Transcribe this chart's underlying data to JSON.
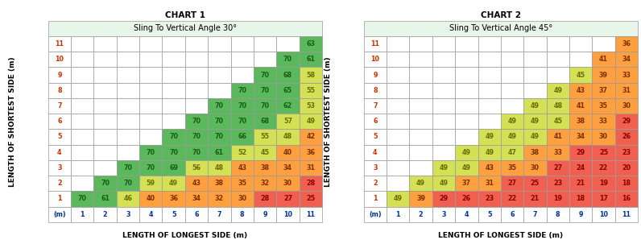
{
  "chart1_title": "CHART 1",
  "chart2_title": "CHART 2",
  "chart1_subtitle": "Sling To Vertical Angle 30°",
  "chart2_subtitle": "Sling To Vertical Angle 45°",
  "xlabel": "LENGTH OF LONGEST SIDE (m)",
  "ylabel": "LENGTH OF SHORTEST SIDE (m)",
  "rows": [
    11,
    10,
    9,
    8,
    7,
    6,
    5,
    4,
    3,
    2,
    1
  ],
  "cols": [
    1,
    2,
    3,
    4,
    5,
    6,
    7,
    8,
    9,
    10,
    11
  ],
  "chart1_data": [
    [
      null,
      null,
      null,
      null,
      null,
      null,
      null,
      null,
      null,
      null,
      63
    ],
    [
      null,
      null,
      null,
      null,
      null,
      null,
      null,
      null,
      null,
      70,
      61
    ],
    [
      null,
      null,
      null,
      null,
      null,
      null,
      null,
      null,
      70,
      68,
      58
    ],
    [
      null,
      null,
      null,
      null,
      null,
      null,
      null,
      70,
      70,
      65,
      55
    ],
    [
      null,
      null,
      null,
      null,
      null,
      null,
      70,
      70,
      70,
      62,
      53
    ],
    [
      null,
      null,
      null,
      null,
      null,
      70,
      70,
      70,
      68,
      57,
      49
    ],
    [
      null,
      null,
      null,
      null,
      70,
      70,
      70,
      66,
      55,
      48,
      42
    ],
    [
      null,
      null,
      null,
      70,
      70,
      70,
      61,
      52,
      45,
      40,
      36
    ],
    [
      null,
      null,
      70,
      70,
      69,
      56,
      48,
      43,
      38,
      34,
      31
    ],
    [
      null,
      70,
      70,
      59,
      49,
      43,
      38,
      35,
      32,
      30,
      28
    ],
    [
      70,
      61,
      46,
      40,
      36,
      34,
      32,
      30,
      28,
      27,
      25
    ]
  ],
  "chart2_data": [
    [
      null,
      null,
      null,
      null,
      null,
      null,
      null,
      null,
      null,
      null,
      36
    ],
    [
      null,
      null,
      null,
      null,
      null,
      null,
      null,
      null,
      null,
      41,
      34
    ],
    [
      null,
      null,
      null,
      null,
      null,
      null,
      null,
      null,
      45,
      39,
      33
    ],
    [
      null,
      null,
      null,
      null,
      null,
      null,
      null,
      49,
      43,
      37,
      31
    ],
    [
      null,
      null,
      null,
      null,
      null,
      null,
      49,
      48,
      41,
      35,
      30
    ],
    [
      null,
      null,
      null,
      null,
      null,
      49,
      49,
      45,
      38,
      33,
      29
    ],
    [
      null,
      null,
      null,
      null,
      49,
      49,
      49,
      41,
      34,
      30,
      26
    ],
    [
      null,
      null,
      null,
      49,
      49,
      47,
      38,
      33,
      29,
      25,
      23
    ],
    [
      null,
      null,
      49,
      49,
      43,
      35,
      30,
      27,
      24,
      22,
      20
    ],
    [
      null,
      49,
      49,
      37,
      31,
      27,
      25,
      23,
      21,
      19,
      18
    ],
    [
      49,
      39,
      29,
      26,
      23,
      22,
      21,
      19,
      18,
      17,
      16
    ]
  ],
  "color_green": "#5cb85c",
  "color_yellow": "#d4e157",
  "color_orange": "#ffa040",
  "color_red": "#f06050",
  "color_white": "#ffffff",
  "color_header": "#e8f5e9",
  "color_border": "#999999",
  "text_green": "#1a5c1a",
  "text_yellow": "#6b6b00",
  "text_orange": "#7a3000",
  "text_red": "#8b0000",
  "text_label": "#cc3300",
  "text_colhdr": "#003399",
  "title_fs": 7.5,
  "subtitle_fs": 7.0,
  "cell_fs": 5.8,
  "label_fs": 5.8,
  "ylabel_fs": 6.5,
  "xlabel_fs": 6.5
}
